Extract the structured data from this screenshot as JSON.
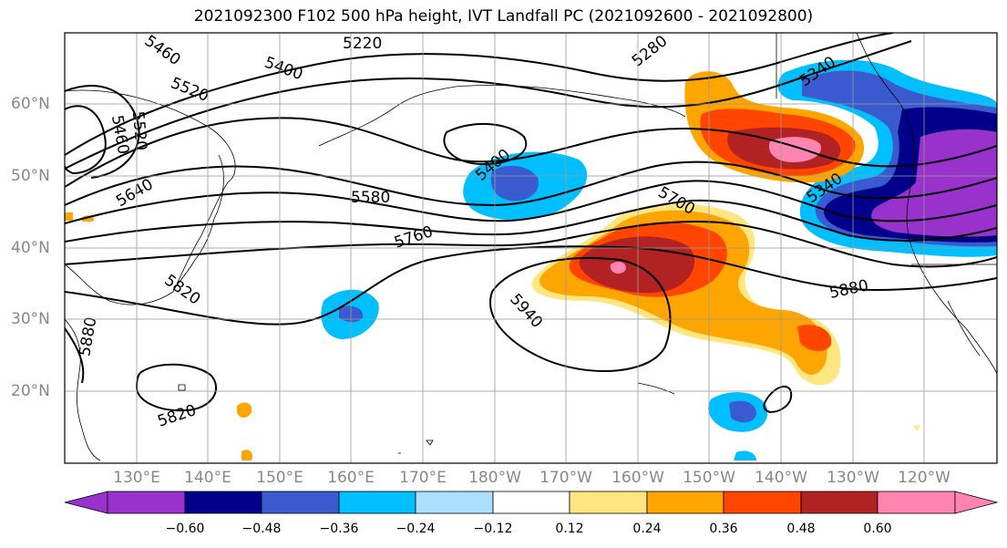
{
  "title": "2021092300 F102 500 hPa height, IVT Landfall PC (2021092600 - 2021092800)",
  "map": {
    "lat_labels": [
      "60°N",
      "50°N",
      "40°N",
      "30°N",
      "20°N"
    ],
    "lon_labels": [
      "130°E",
      "140°E",
      "150°E",
      "160°E",
      "170°E",
      "180°W",
      "170°W",
      "160°W",
      "150°W",
      "140°W",
      "130°W",
      "120°W"
    ],
    "contour_labels": [
      "5220",
      "5280",
      "5340",
      "5460",
      "5400",
      "5520",
      "5520",
      "5460",
      "5640",
      "5400",
      "5580",
      "5700",
      "5760",
      "5340",
      "5880",
      "5820",
      "5940",
      "5880",
      "5820"
    ]
  },
  "colorbar": {
    "ticks": [
      "−0.60",
      "−0.48",
      "−0.36",
      "−0.24",
      "−0.12",
      "0.12",
      "0.24",
      "0.36",
      "0.48",
      "0.60"
    ],
    "colors": [
      "#9932CC",
      "#00008B",
      "#3A5BD0",
      "#00BFFF",
      "#ADDFFF",
      "#FFFFFF",
      "#FFE680",
      "#FFA500",
      "#FF4500",
      "#B22222",
      "#FF85B0"
    ]
  }
}
